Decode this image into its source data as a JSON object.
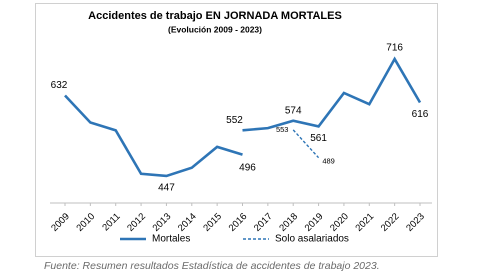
{
  "chart_data": {
    "type": "line",
    "title": "Accidentes de trabajo EN JORNADA MORTALES",
    "subtitle": "(Evolución 2009 - 2023)",
    "xlim": [
      2009,
      2023
    ],
    "xticks": [
      2009,
      2010,
      2011,
      2012,
      2013,
      2014,
      2015,
      2016,
      2017,
      2018,
      2019,
      2020,
      2021,
      2022,
      2023
    ],
    "ylim": [
      420,
      740
    ],
    "series": [
      {
        "name": "Mortales",
        "color": "#2e75b6",
        "dashed": false,
        "x": [
          2009,
          2010,
          2011,
          2012,
          2013,
          2014,
          2015,
          2016,
          2016,
          2016,
          2017,
          2018,
          2019,
          2020,
          2021,
          2022,
          2023
        ],
        "values": [
          632,
          570,
          552,
          452,
          447,
          466,
          514,
          496,
          null,
          552,
          557,
          574,
          561,
          638,
          612,
          716,
          616
        ],
        "value_labels": [
          "632",
          null,
          null,
          null,
          "447",
          null,
          null,
          "496",
          null,
          "552",
          null,
          "574",
          "561",
          null,
          null,
          "716",
          "616"
        ]
      },
      {
        "name": "Solo asalariados",
        "color": "#2e75b6",
        "dashed": true,
        "x": [
          2018,
          2019
        ],
        "values": [
          553,
          489
        ],
        "value_labels": [
          "553",
          "489"
        ]
      }
    ],
    "legend": "bottom"
  },
  "source": "Fuente: Resumen resultados Estadística de accidentes de trabajo 2023."
}
